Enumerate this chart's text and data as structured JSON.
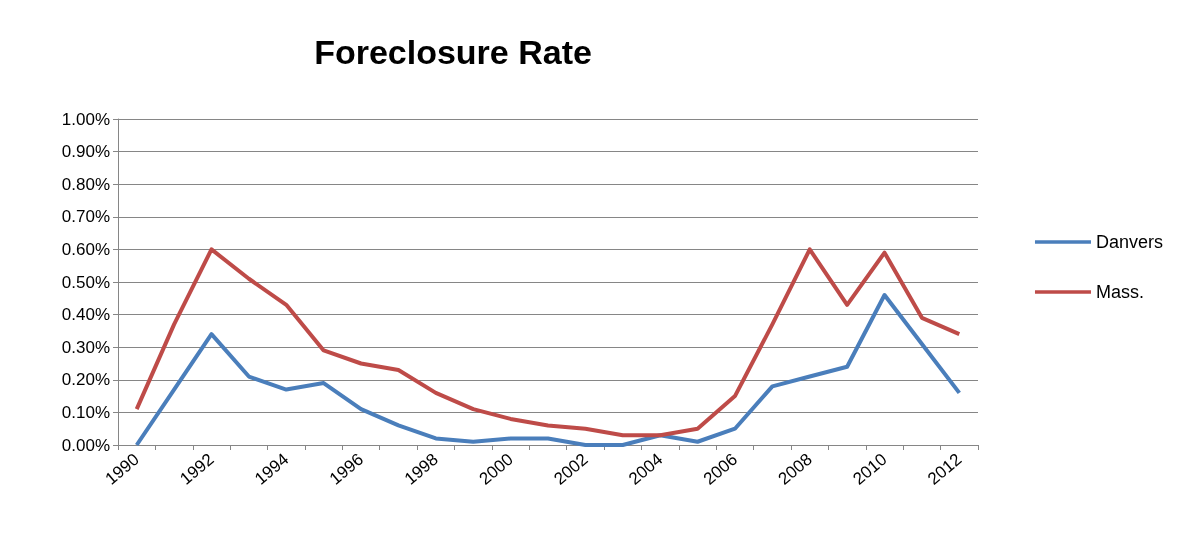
{
  "chart_data": {
    "type": "line",
    "title": "Foreclosure Rate",
    "categories": [
      "1990",
      null,
      "1992",
      null,
      "1994",
      null,
      "1996",
      null,
      "1998",
      null,
      "2000",
      null,
      "2002",
      null,
      "2004",
      null,
      "2006",
      null,
      "2008",
      null,
      "2010",
      null,
      "2012"
    ],
    "series": [
      {
        "name": "Danvers",
        "color": "#4a7ebb",
        "values": [
          0.0,
          0.17,
          0.34,
          0.21,
          0.17,
          0.19,
          0.11,
          0.06,
          0.02,
          0.01,
          0.02,
          0.02,
          0.0,
          0.0,
          0.03,
          0.01,
          0.05,
          0.18,
          0.21,
          0.24,
          0.46,
          0.31,
          0.16
        ]
      },
      {
        "name": "Mass.",
        "color": "#be4b48",
        "values": [
          0.11,
          0.37,
          0.6,
          0.51,
          0.43,
          0.29,
          0.25,
          0.23,
          0.16,
          0.11,
          0.08,
          0.06,
          0.05,
          0.03,
          0.03,
          0.05,
          0.15,
          0.37,
          0.6,
          0.43,
          0.59,
          0.39,
          0.34
        ]
      }
    ],
    "ylim": [
      0,
      1
    ],
    "yticks": [
      {
        "value": 0,
        "label": "0.00%"
      },
      {
        "value": 0.1,
        "label": "0.10%"
      },
      {
        "value": 0.2,
        "label": "0.20%"
      },
      {
        "value": 0.3,
        "label": "0.30%"
      },
      {
        "value": 0.4,
        "label": "0.40%"
      },
      {
        "value": 0.5,
        "label": "0.50%"
      },
      {
        "value": 0.6,
        "label": "0.60%"
      },
      {
        "value": 0.7,
        "label": "0.70%"
      },
      {
        "value": 0.8,
        "label": "0.80%"
      },
      {
        "value": 0.9,
        "label": "0.90%"
      },
      {
        "value": 1,
        "label": "1.00%"
      }
    ],
    "grid": "y",
    "legend": "right",
    "marker": "none",
    "line_style": "solid"
  }
}
